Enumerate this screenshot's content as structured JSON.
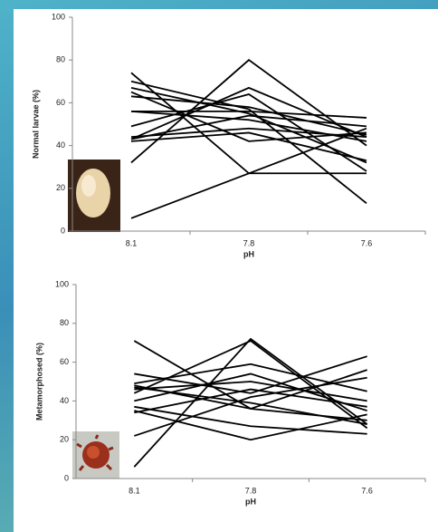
{
  "chart_data": [
    {
      "type": "line",
      "y_label": "Normal larvae (%)",
      "x_label": "pH",
      "categories": [
        "8.1",
        "7.8",
        "7.6"
      ],
      "ylim": [
        0,
        100
      ],
      "yticks": [
        0,
        20,
        40,
        60,
        80,
        100
      ],
      "grid": false,
      "series": [
        {
          "color": "#000000",
          "values": [
            6,
            27,
            48
          ]
        },
        {
          "color": "#000000",
          "values": [
            74,
            27,
            27
          ]
        },
        {
          "color": "#000000",
          "values": [
            32,
            80,
            40
          ]
        },
        {
          "color": "#000000",
          "values": [
            43,
            67,
            44
          ]
        },
        {
          "color": "#000000",
          "values": [
            70,
            57,
            13
          ]
        },
        {
          "color": "#000000",
          "values": [
            67,
            55,
            32
          ]
        },
        {
          "color": "#000000",
          "values": [
            65,
            42,
            46
          ]
        },
        {
          "color": "#000000",
          "values": [
            63,
            58,
            45
          ]
        },
        {
          "color": "#000000",
          "values": [
            56,
            56,
            53
          ]
        },
        {
          "color": "#000000",
          "values": [
            56,
            52,
            42
          ]
        },
        {
          "color": "#000000",
          "values": [
            49,
            64,
            28
          ]
        },
        {
          "color": "#000000",
          "values": [
            44,
            48,
            44
          ]
        },
        {
          "color": "#000000",
          "values": [
            42,
            46,
            33
          ]
        },
        {
          "color": "#000000",
          "values": [
            43,
            54,
            49
          ]
        }
      ]
    },
    {
      "type": "line",
      "y_label": "Metamorphosed (%)",
      "x_label": "pH",
      "categories": [
        "8.1",
        "7.8",
        "7.6"
      ],
      "ylim": [
        0,
        100
      ],
      "yticks": [
        0,
        20,
        40,
        60,
        80,
        100
      ],
      "grid": false,
      "series": [
        {
          "color": "#000000",
          "values": [
            6,
            72,
            28
          ]
        },
        {
          "color": "#000000",
          "values": [
            71,
            36,
            30
          ]
        },
        {
          "color": "#000000",
          "values": [
            54,
            44,
            63
          ]
        },
        {
          "color": "#000000",
          "values": [
            49,
            59,
            45
          ]
        },
        {
          "color": "#000000",
          "values": [
            48,
            36,
            56
          ]
        },
        {
          "color": "#000000",
          "values": [
            46,
            50,
            40
          ]
        },
        {
          "color": "#000000",
          "values": [
            44,
            71,
            26
          ]
        },
        {
          "color": "#000000",
          "values": [
            40,
            54,
            35
          ]
        },
        {
          "color": "#000000",
          "values": [
            37,
            27,
            23
          ]
        },
        {
          "color": "#000000",
          "values": [
            35,
            20,
            33
          ]
        },
        {
          "color": "#000000",
          "values": [
            34,
            46,
            37
          ]
        },
        {
          "color": "#000000",
          "values": [
            22,
            42,
            52
          ]
        },
        {
          "color": "#000000",
          "values": [
            47,
            39,
            28
          ]
        }
      ]
    }
  ]
}
